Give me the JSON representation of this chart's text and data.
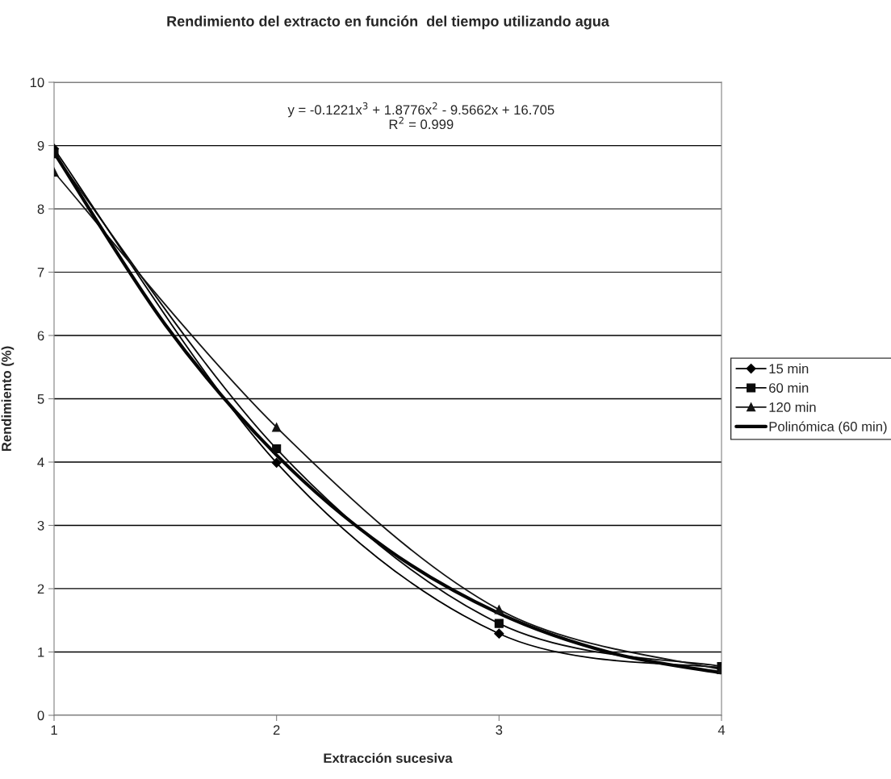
{
  "chart_data": {
    "type": "line",
    "title": "Rendimiento del extracto en función  del tiempo utilizando agua",
    "xlabel": "Extracción sucesiva",
    "ylabel": "Rendimiento (%)",
    "x": [
      1,
      2,
      3,
      4
    ],
    "series": [
      {
        "name": "15 min",
        "color": "#000000",
        "marker": "diamond",
        "values": [
          8.95,
          3.99,
          1.29,
          0.75
        ]
      },
      {
        "name": "60 min",
        "color": "#0a0a0a",
        "marker": "square",
        "values": [
          8.87,
          4.21,
          1.45,
          0.77
        ]
      },
      {
        "name": "120 min",
        "color": "#141414",
        "marker": "triangle",
        "values": [
          8.58,
          4.55,
          1.67,
          0.72
        ]
      },
      {
        "name": "Polinómica (60 min)",
        "color": "#050505",
        "marker": "none",
        "type": "line",
        "x": [
          1,
          1.5,
          2,
          2.5,
          3,
          3.5,
          4
        ],
        "values": [
          8.89,
          6.17,
          4.11,
          2.62,
          1.61,
          0.99,
          0.67
        ]
      }
    ],
    "annotations": [
      {
        "text": "y = -0.1221x$^{3}$ + 1.8776x$^{2}$ - 9.5662x + 16.705\nR$^{2}$ = 0.999"
      }
    ],
    "xlim": [
      1,
      4
    ],
    "xticks": [
      1,
      2,
      3,
      4
    ],
    "ylim": [
      0,
      10
    ],
    "yticks": [
      0,
      1,
      2,
      3,
      4,
      5,
      6,
      7,
      8,
      9,
      10
    ],
    "grid": "y",
    "legend": "right"
  }
}
